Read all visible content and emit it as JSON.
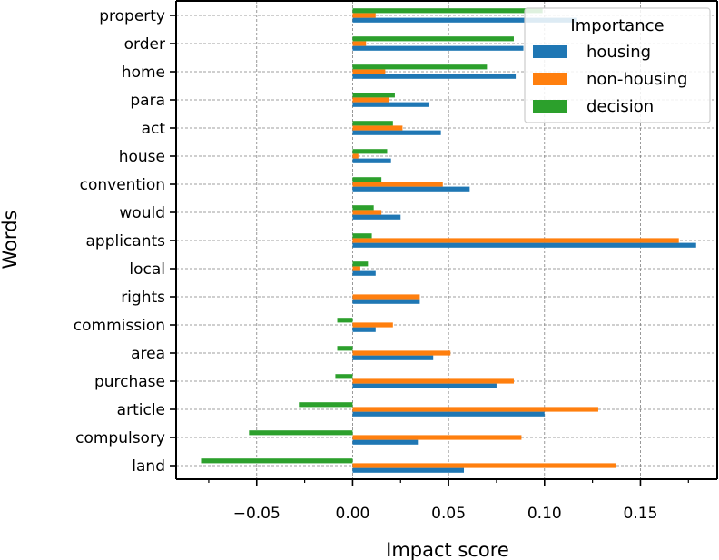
{
  "chart_data": {
    "type": "bar",
    "orientation": "horizontal",
    "xlabel": "Impact score",
    "ylabel": "Words",
    "xlim": [
      -0.092,
      0.19
    ],
    "xticks": [
      -0.05,
      0.0,
      0.05,
      0.1,
      0.15
    ],
    "xtick_labels": [
      "−0.05",
      "0.00",
      "0.05",
      "0.10",
      "0.15"
    ],
    "grid": true,
    "legend": {
      "title": "Importance",
      "placement": "top-right",
      "entries": [
        "housing",
        "non-housing",
        "decision"
      ]
    },
    "categories": [
      "property",
      "order",
      "home",
      "para",
      "act",
      "house",
      "convention",
      "would",
      "applicants",
      "local",
      "rights",
      "commission",
      "area",
      "purchase",
      "article",
      "compulsory",
      "land"
    ],
    "series": [
      {
        "name": "housing",
        "color": "#1f77b4",
        "values": [
          0.117,
          0.089,
          0.085,
          0.04,
          0.046,
          0.02,
          0.061,
          0.025,
          0.179,
          0.012,
          0.035,
          0.012,
          0.042,
          0.075,
          0.1,
          0.034,
          0.058
        ]
      },
      {
        "name": "non-housing",
        "color": "#ff7f0e",
        "values": [
          0.012,
          0.007,
          0.017,
          0.019,
          0.026,
          0.003,
          0.047,
          0.015,
          0.17,
          0.004,
          0.035,
          0.021,
          0.051,
          0.084,
          0.128,
          0.088,
          0.137
        ]
      },
      {
        "name": "decision",
        "color": "#2ca02c",
        "values": [
          0.099,
          0.084,
          0.07,
          0.022,
          0.021,
          0.018,
          0.015,
          0.011,
          0.01,
          0.008,
          0.0,
          -0.008,
          -0.008,
          -0.009,
          -0.028,
          -0.054,
          -0.079
        ]
      }
    ]
  }
}
